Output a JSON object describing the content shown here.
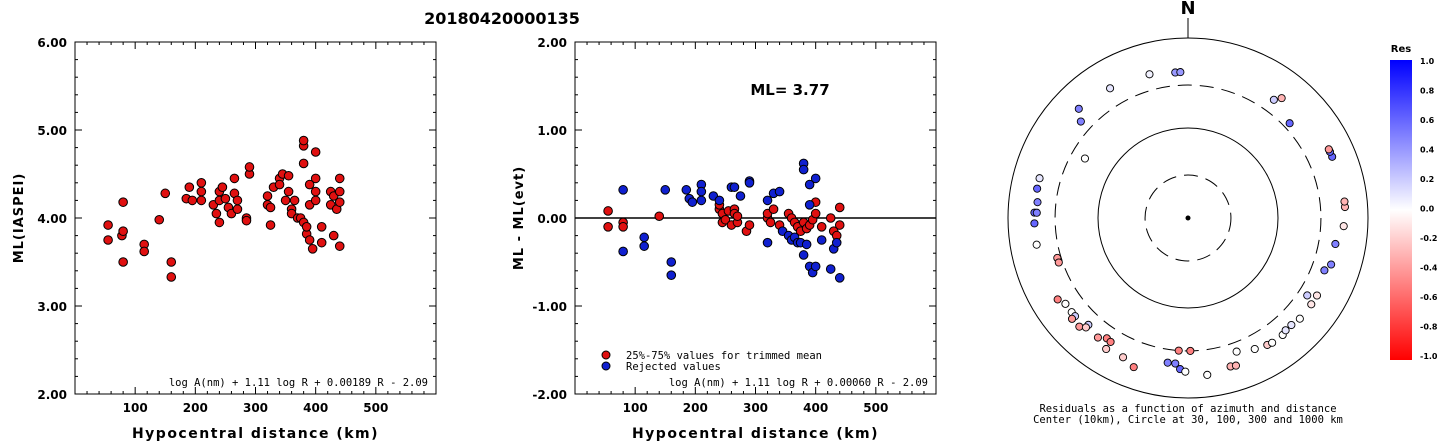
{
  "page_title": "20180420000135",
  "chart_data": [
    {
      "type": "scatter",
      "ylabel": "ML(IASPEI)",
      "xlabel": "Hypocentral distance (km)",
      "xlim": [
        0,
        600
      ],
      "ylim": [
        2.0,
        6.0
      ],
      "x_ticks": [
        "100",
        "200",
        "300",
        "400",
        "500"
      ],
      "y_ticks": [
        "2.00",
        "3.00",
        "4.00",
        "5.00",
        "6.00"
      ],
      "formula": "log A(nm) + 1.11 log R + 0.00189 R - 2.09",
      "marker_color": "#e01010",
      "points": [
        [
          55,
          3.92
        ],
        [
          55,
          3.75
        ],
        [
          78,
          3.8
        ],
        [
          80,
          3.85
        ],
        [
          80,
          3.5
        ],
        [
          80,
          4.18
        ],
        [
          115,
          3.7
        ],
        [
          115,
          3.62
        ],
        [
          140,
          3.98
        ],
        [
          150,
          4.28
        ],
        [
          160,
          3.5
        ],
        [
          160,
          3.33
        ],
        [
          185,
          4.22
        ],
        [
          190,
          4.35
        ],
        [
          195,
          4.2
        ],
        [
          210,
          4.4
        ],
        [
          210,
          4.3
        ],
        [
          210,
          4.2
        ],
        [
          230,
          4.15
        ],
        [
          235,
          4.05
        ],
        [
          240,
          4.2
        ],
        [
          240,
          3.95
        ],
        [
          240,
          4.3
        ],
        [
          245,
          4.35
        ],
        [
          250,
          4.22
        ],
        [
          255,
          4.12
        ],
        [
          260,
          4.05
        ],
        [
          265,
          4.45
        ],
        [
          265,
          4.28
        ],
        [
          270,
          4.1
        ],
        [
          270,
          4.2
        ],
        [
          285,
          4.0
        ],
        [
          285,
          3.97
        ],
        [
          290,
          4.5
        ],
        [
          290,
          4.58
        ],
        [
          320,
          4.15
        ],
        [
          320,
          4.25
        ],
        [
          325,
          4.12
        ],
        [
          325,
          3.92
        ],
        [
          330,
          4.35
        ],
        [
          340,
          4.45
        ],
        [
          340,
          4.38
        ],
        [
          345,
          4.5
        ],
        [
          350,
          4.2
        ],
        [
          355,
          4.48
        ],
        [
          355,
          4.3
        ],
        [
          360,
          4.1
        ],
        [
          360,
          4.05
        ],
        [
          365,
          4.2
        ],
        [
          370,
          4.0
        ],
        [
          375,
          4.0
        ],
        [
          380,
          3.95
        ],
        [
          380,
          4.82
        ],
        [
          380,
          4.88
        ],
        [
          380,
          4.62
        ],
        [
          385,
          3.82
        ],
        [
          385,
          3.9
        ],
        [
          390,
          4.15
        ],
        [
          390,
          4.38
        ],
        [
          390,
          3.75
        ],
        [
          395,
          3.65
        ],
        [
          400,
          4.3
        ],
        [
          400,
          4.2
        ],
        [
          400,
          4.75
        ],
        [
          400,
          4.45
        ],
        [
          410,
          3.72
        ],
        [
          410,
          3.9
        ],
        [
          425,
          4.15
        ],
        [
          425,
          4.3
        ],
        [
          430,
          3.8
        ],
        [
          430,
          4.25
        ],
        [
          435,
          4.1
        ],
        [
          440,
          3.68
        ],
        [
          440,
          4.18
        ],
        [
          440,
          4.45
        ],
        [
          440,
          4.3
        ]
      ]
    },
    {
      "type": "scatter",
      "ylabel": "ML - ML(evt)",
      "xlabel": "Hypocentral distance (km)",
      "xlim": [
        0,
        600
      ],
      "ylim": [
        -2.0,
        2.0
      ],
      "x_ticks": [
        "100",
        "200",
        "300",
        "400",
        "500"
      ],
      "y_ticks": [
        "-2.00",
        "-1.00",
        "0.00",
        "1.00",
        "2.00"
      ],
      "annotation": "ML= 3.77",
      "formula": "log A(nm) + 1.11 log R + 0.00060 R - 2.09",
      "legend": [
        {
          "label": "25%-75% values for trimmed mean",
          "color": "#e01010"
        },
        {
          "label": "Rejected values",
          "color": "#1020d0"
        }
      ],
      "series": [
        {
          "name": "25%-75% values for trimmed mean",
          "color": "#e01010",
          "points": [
            [
              55,
              0.08
            ],
            [
              55,
              -0.1
            ],
            [
              80,
              -0.05
            ],
            [
              80,
              -0.1
            ],
            [
              140,
              0.02
            ],
            [
              240,
              0.1
            ],
            [
              240,
              0.15
            ],
            [
              245,
              0.05
            ],
            [
              245,
              -0.05
            ],
            [
              250,
              -0.02
            ],
            [
              255,
              0.08
            ],
            [
              260,
              -0.08
            ],
            [
              265,
              0.1
            ],
            [
              265,
              0.05
            ],
            [
              270,
              -0.05
            ],
            [
              270,
              0.02
            ],
            [
              285,
              -0.15
            ],
            [
              290,
              -0.08
            ],
            [
              320,
              0.0
            ],
            [
              320,
              0.05
            ],
            [
              325,
              -0.05
            ],
            [
              330,
              0.1
            ],
            [
              340,
              -0.08
            ],
            [
              355,
              0.05
            ],
            [
              360,
              0.0
            ],
            [
              365,
              -0.05
            ],
            [
              370,
              -0.1
            ],
            [
              375,
              -0.15
            ],
            [
              380,
              -0.05
            ],
            [
              385,
              -0.12
            ],
            [
              390,
              -0.08
            ],
            [
              395,
              -0.02
            ],
            [
              400,
              0.18
            ],
            [
              400,
              0.05
            ],
            [
              410,
              -0.1
            ],
            [
              425,
              0.0
            ],
            [
              430,
              -0.15
            ],
            [
              435,
              -0.2
            ],
            [
              440,
              0.12
            ],
            [
              440,
              -0.08
            ]
          ]
        },
        {
          "name": "Rejected values",
          "color": "#1020d0",
          "points": [
            [
              80,
              0.32
            ],
            [
              80,
              -0.38
            ],
            [
              115,
              -0.22
            ],
            [
              115,
              -0.32
            ],
            [
              150,
              0.32
            ],
            [
              160,
              -0.5
            ],
            [
              160,
              -0.65
            ],
            [
              185,
              0.32
            ],
            [
              190,
              0.22
            ],
            [
              195,
              0.18
            ],
            [
              210,
              0.38
            ],
            [
              210,
              0.3
            ],
            [
              210,
              0.2
            ],
            [
              230,
              0.25
            ],
            [
              240,
              0.2
            ],
            [
              260,
              0.35
            ],
            [
              265,
              0.35
            ],
            [
              275,
              0.25
            ],
            [
              290,
              0.42
            ],
            [
              290,
              0.4
            ],
            [
              320,
              0.2
            ],
            [
              320,
              -0.28
            ],
            [
              330,
              0.28
            ],
            [
              340,
              0.3
            ],
            [
              345,
              -0.15
            ],
            [
              355,
              -0.2
            ],
            [
              360,
              -0.25
            ],
            [
              365,
              -0.22
            ],
            [
              370,
              -0.28
            ],
            [
              375,
              -0.28
            ],
            [
              380,
              -0.42
            ],
            [
              380,
              0.62
            ],
            [
              380,
              0.55
            ],
            [
              385,
              -0.3
            ],
            [
              390,
              0.15
            ],
            [
              390,
              0.38
            ],
            [
              390,
              -0.55
            ],
            [
              395,
              -0.62
            ],
            [
              400,
              0.45
            ],
            [
              400,
              -0.55
            ],
            [
              410,
              -0.25
            ],
            [
              425,
              -0.58
            ],
            [
              430,
              -0.35
            ],
            [
              435,
              -0.28
            ],
            [
              440,
              -0.68
            ]
          ]
        }
      ]
    },
    {
      "type": "scatter",
      "subtype": "polar",
      "north_label": "N",
      "caption": [
        "Residuals as a function of azimuth and distance",
        "Center (10km), Circle at 30, 100, 300 and 1000 km"
      ],
      "rings_km": [
        {
          "km": 30,
          "style": "dashed"
        },
        {
          "km": 100,
          "style": "solid"
        },
        {
          "km": 300,
          "style": "dashed"
        },
        {
          "km": 1000,
          "style": "solid"
        }
      ],
      "colorbar": {
        "title": "Res",
        "ticks": [
          "1.0",
          "0.8",
          "0.6",
          "0.4",
          "0.2",
          "0.0",
          "-0.2",
          "-0.4",
          "-0.6",
          "-0.8",
          "-1.0"
        ],
        "high_color": "#0000ff",
        "mid_color": "#ffffff",
        "low_color": "#ff0000"
      },
      "stations": [
        {
          "az": 345,
          "dist": 450,
          "res": 0.05
        },
        {
          "az": 355,
          "dist": 420,
          "res": 0.4
        },
        {
          "az": 357,
          "dist": 420,
          "res": 0.4
        },
        {
          "az": 329,
          "dist": 480,
          "res": 0.1
        },
        {
          "az": 315,
          "dist": 520,
          "res": 0.5
        },
        {
          "az": 312,
          "dist": 400,
          "res": 0.5
        },
        {
          "az": 285,
          "dist": 510,
          "res": 0.1
        },
        {
          "az": 281,
          "dist": 510,
          "res": 0.6
        },
        {
          "az": 272,
          "dist": 510,
          "res": 0.6
        },
        {
          "az": 268,
          "dist": 510,
          "res": 0.6
        },
        {
          "az": 276,
          "dist": 480,
          "res": 0.5
        },
        {
          "az": 272,
          "dist": 480,
          "res": 0.5
        },
        {
          "az": 260,
          "dist": 510,
          "res": 0.0
        },
        {
          "az": 300,
          "dist": 210,
          "res": 0.0
        },
        {
          "az": 253,
          "dist": 330,
          "res": -0.4
        },
        {
          "az": 251,
          "dist": 330,
          "res": -0.4
        },
        {
          "az": 238,
          "dist": 510,
          "res": -0.5
        },
        {
          "az": 235,
          "dist": 460,
          "res": 0.0
        },
        {
          "az": 231,
          "dist": 460,
          "res": 0.0
        },
        {
          "az": 229,
          "dist": 460,
          "res": 0.2
        },
        {
          "az": 229,
          "dist": 510,
          "res": -0.4
        },
        {
          "az": 225,
          "dist": 510,
          "res": -0.4
        },
        {
          "az": 223,
          "dist": 420,
          "res": 0.2
        },
        {
          "az": 223,
          "dist": 460,
          "res": -0.2
        },
        {
          "az": 217,
          "dist": 460,
          "res": -0.4
        },
        {
          "az": 214,
          "dist": 410,
          "res": -0.5
        },
        {
          "az": 212,
          "dist": 420,
          "res": -0.5
        },
        {
          "az": 212,
          "dist": 520,
          "res": -0.2
        },
        {
          "az": 205,
          "dist": 510,
          "res": -0.2
        },
        {
          "az": 200,
          "dist": 580,
          "res": -0.5
        },
        {
          "az": 188,
          "dist": 420,
          "res": 0.5
        },
        {
          "az": 185,
          "dist": 420,
          "res": 0.5
        },
        {
          "az": 184,
          "dist": 300,
          "res": -0.5
        },
        {
          "az": 179,
          "dist": 300,
          "res": -0.5
        },
        {
          "az": 183,
          "dist": 480,
          "res": 0.6
        },
        {
          "az": 181,
          "dist": 510,
          "res": 0.0
        },
        {
          "az": 173,
          "dist": 570,
          "res": 0.0
        },
        {
          "az": 164,
          "dist": 520,
          "res": -0.3
        },
        {
          "az": 162,
          "dist": 530,
          "res": -0.3
        },
        {
          "az": 160,
          "dist": 380,
          "res": 0.0
        },
        {
          "az": 153,
          "dist": 430,
          "res": 0.0
        },
        {
          "az": 148,
          "dist": 460,
          "res": -0.2
        },
        {
          "az": 146,
          "dist": 470,
          "res": 0.0
        },
        {
          "az": 141,
          "dist": 470,
          "res": 0.0
        },
        {
          "az": 139,
          "dist": 450,
          "res": 0.1
        },
        {
          "az": 136,
          "dist": 450,
          "res": 0.1
        },
        {
          "az": 132,
          "dist": 470,
          "res": 0.0
        },
        {
          "az": 125,
          "dist": 470,
          "res": -0.1
        },
        {
          "az": 121,
          "dist": 470,
          "res": -0.1
        },
        {
          "az": 123,
          "dist": 380,
          "res": 0.2
        },
        {
          "az": 111,
          "dist": 420,
          "res": 0.5
        },
        {
          "az": 108,
          "dist": 470,
          "res": 0.5
        },
        {
          "az": 100,
          "dist": 460,
          "res": 0.5
        },
        {
          "az": 93,
          "dist": 540,
          "res": -0.1
        },
        {
          "az": 86,
          "dist": 560,
          "res": -0.3
        },
        {
          "az": 84,
          "dist": 560,
          "res": -0.3
        },
        {
          "az": 67,
          "dist": 550,
          "res": 0.6
        },
        {
          "az": 65,
          "dist": 550,
          "res": 0.6
        },
        {
          "az": 64,
          "dist": 550,
          "res": -0.4
        },
        {
          "az": 47,
          "dist": 350,
          "res": 0.6
        },
        {
          "az": 38,
          "dist": 490,
          "res": -0.3
        },
        {
          "az": 36,
          "dist": 420,
          "res": 0.2
        }
      ]
    }
  ]
}
